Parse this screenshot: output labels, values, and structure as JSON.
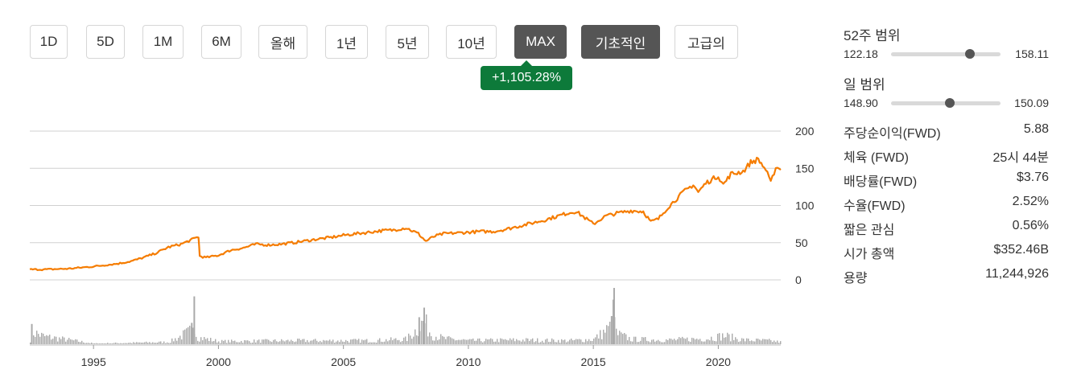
{
  "range_buttons": [
    {
      "label": "1D",
      "active": false
    },
    {
      "label": "5D",
      "active": false
    },
    {
      "label": "1M",
      "active": false
    },
    {
      "label": "6M",
      "active": false
    },
    {
      "label": "올해",
      "active": false
    },
    {
      "label": "1년",
      "active": false
    },
    {
      "label": "5년",
      "active": false
    },
    {
      "label": "10년",
      "active": false
    },
    {
      "label": "MAX",
      "active": true
    },
    {
      "label": "기초적인",
      "active": true
    },
    {
      "label": "고급의",
      "active": false
    }
  ],
  "change_badge": {
    "text": "+1,105.28%",
    "color": "#0d7a3a"
  },
  "range_52w": {
    "title": "52주 범위",
    "low": "122.18",
    "high": "158.11",
    "position": 0.72
  },
  "range_day": {
    "title": "일 범위",
    "low": "148.90",
    "high": "150.09",
    "position": 0.54
  },
  "stats": [
    {
      "label": "주당순이익(FWD)",
      "value": "5.88"
    },
    {
      "label": "체육 (FWD)",
      "value": "25시 44분"
    },
    {
      "label": "배당률(FWD)",
      "value": "$3.76"
    },
    {
      "label": "수율(FWD)",
      "value": "2.52%"
    },
    {
      "label": "짧은 관심",
      "value": "0.56%"
    },
    {
      "label": "시가 총액",
      "value": "$352.46B"
    },
    {
      "label": "용량",
      "value": "11,244,926"
    }
  ],
  "chart_data": {
    "type": "line",
    "title": "",
    "xlabel": "",
    "ylabel": "",
    "line_color": "#f57c00",
    "volume_color": "#aaaaaa",
    "xlim": [
      1992.45,
      2022.5
    ],
    "ylim": [
      0,
      200
    ],
    "y_ticks": [
      0,
      50,
      100,
      150,
      200
    ],
    "x_ticks": [
      1995,
      2000,
      2005,
      2010,
      2015,
      2020
    ],
    "grid": true,
    "series": [
      {
        "values_x": [
          1992.45,
          1993.0,
          1994.0,
          1995.0,
          1996.0,
          1996.5,
          1997.0,
          1997.5,
          1998.0,
          1998.5,
          1999.0,
          1999.2,
          1999.25,
          1999.5,
          2000.0,
          2000.5,
          2001.0,
          2001.5,
          2002.0,
          2002.5,
          2003.0,
          2004.0,
          2004.5,
          2005.0,
          2005.5,
          2006.0,
          2006.5,
          2007.0,
          2007.5,
          2008.0,
          2008.3,
          2008.6,
          2009.0,
          2009.5,
          2010.0,
          2010.5,
          2011.0,
          2011.5,
          2012.0,
          2012.5,
          2013.0,
          2013.5,
          2014.0,
          2014.3,
          2014.6,
          2015.0,
          2015.5,
          2016.0,
          2016.5,
          2017.0,
          2017.3,
          2017.6,
          2018.0,
          2018.3,
          2018.6,
          2019.0,
          2019.2,
          2019.5,
          2020.0,
          2020.2,
          2020.5,
          2021.0,
          2021.3,
          2021.6,
          2021.9,
          2022.1,
          2022.3,
          2022.5
        ],
        "values_y": [
          14,
          14,
          15,
          18,
          22,
          25,
          30,
          36,
          44,
          48,
          55,
          58,
          32,
          30,
          33,
          40,
          43,
          48,
          47,
          48,
          50,
          55,
          57,
          60,
          62,
          64,
          66,
          67,
          70,
          62,
          52,
          58,
          62,
          63,
          64,
          65,
          65,
          68,
          72,
          76,
          80,
          85,
          90,
          92,
          85,
          75,
          86,
          90,
          93,
          92,
          78,
          82,
          98,
          108,
          118,
          128,
          118,
          130,
          140,
          128,
          142,
          146,
          158,
          162,
          148,
          130,
          152,
          148
        ]
      }
    ],
    "volume": {
      "x": [
        1992.45,
        1992.5,
        1993.0,
        1995.0,
        1998.0,
        1998.9,
        1999.0,
        1999.1,
        2000.0,
        2003.0,
        2006.0,
        2007.5,
        2008.0,
        2008.2,
        2008.5,
        2009.0,
        2010.0,
        2012.0,
        2014.0,
        2015.0,
        2015.7,
        2015.8,
        2015.9,
        2016.5,
        2018.0,
        2019.5,
        2020.2,
        2021.0,
        2022.0,
        2022.5
      ],
      "y": [
        0.12,
        0.36,
        0.22,
        0.02,
        0.06,
        0.38,
        0.85,
        0.2,
        0.08,
        0.1,
        0.1,
        0.14,
        0.48,
        0.65,
        0.28,
        0.16,
        0.1,
        0.12,
        0.1,
        0.14,
        0.5,
        1.0,
        0.3,
        0.14,
        0.12,
        0.16,
        0.24,
        0.12,
        0.1,
        0.06
      ]
    }
  }
}
